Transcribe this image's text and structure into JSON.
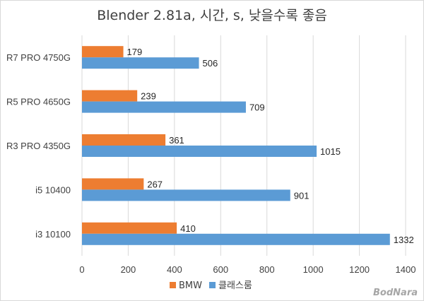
{
  "chart_data": {
    "type": "bar",
    "orientation": "horizontal",
    "title": "Blender 2.81a, 시간, s, 낮을수록 좋음",
    "categories": [
      "R7 PRO 4750G",
      "R5 PRO 4650G",
      "R3 PRO 4350G",
      "i5 10400",
      "i3 10100"
    ],
    "series": [
      {
        "name": "BMW",
        "color": "#ed7d31",
        "values": [
          179,
          239,
          361,
          267,
          410
        ]
      },
      {
        "name": "클래스룸",
        "color": "#5b9bd5",
        "values": [
          506,
          709,
          1015,
          901,
          1332
        ]
      }
    ],
    "xlim": [
      0,
      1400
    ],
    "xticks": [
      0,
      200,
      400,
      600,
      800,
      1000,
      1200,
      1400
    ],
    "grid": true,
    "legend_position": "bottom"
  },
  "watermark": "BodNara"
}
